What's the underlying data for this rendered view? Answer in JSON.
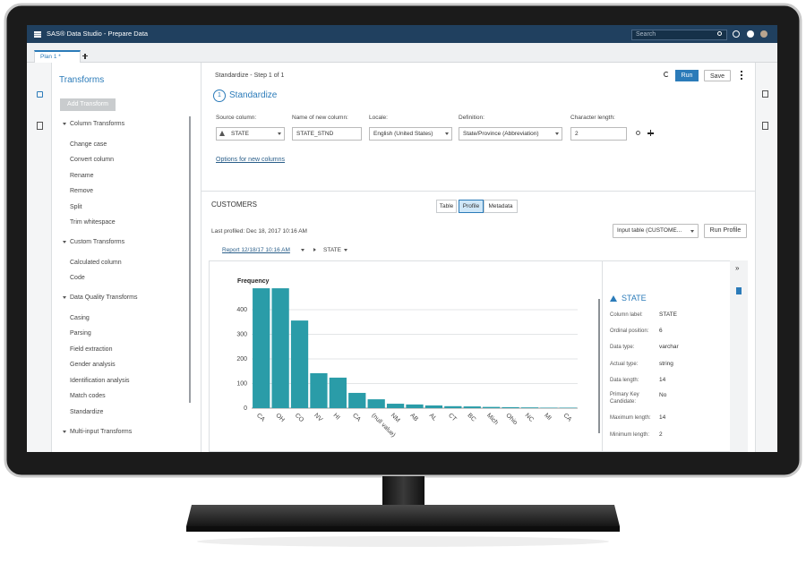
{
  "app_bar": {
    "title": "SAS® Data Studio - Prepare Data",
    "search": "Search"
  },
  "tabs": [
    "Plan 1 *"
  ],
  "transforms": {
    "title": "Transforms",
    "add_button": "Add Transform",
    "groups": [
      {
        "name": "Column Transforms",
        "items": [
          "Change case",
          "Convert column",
          "Rename",
          "Remove",
          "Split",
          "Trim whitespace"
        ]
      },
      {
        "name": "Custom Transforms",
        "items": [
          "Calculated column",
          "Code"
        ]
      },
      {
        "name": "Data Quality Transforms",
        "items": [
          "Casing",
          "Parsing",
          "Field extraction",
          "Gender analysis",
          "Identification analysis",
          "Match codes",
          "Standardize"
        ]
      },
      {
        "name": "Multi-input Transforms",
        "items": []
      }
    ]
  },
  "step": {
    "header": "Standardize - Step 1 of 1",
    "number": "1",
    "title": "Standardize",
    "run": "Run",
    "save": "Save",
    "fields": [
      {
        "label": "Source column:",
        "value": "STATE"
      },
      {
        "label": "Name of new column:",
        "value": "STATE_STND"
      },
      {
        "label": "Locale:",
        "value": "English (United States)"
      },
      {
        "label": "Definition:",
        "value": "State/Province (Abbreviation)"
      },
      {
        "label": "Character length:",
        "value": "2"
      }
    ],
    "options_link": "Options for new columns"
  },
  "profile": {
    "table_name": "CUSTOMERS",
    "view_tabs": [
      "Table",
      "Profile",
      "Metadata"
    ],
    "last_profiled": "Last profiled:  Dec 18, 2017 10:16 AM",
    "input_table": "Input table (CUSTOME...",
    "run_profile": "Run Profile",
    "report": "Report 12/18/17 10:16 AM",
    "column": "STATE"
  },
  "chart_data": {
    "type": "bar",
    "title": "Frequency",
    "categories": [
      "CA",
      "OH",
      "CO",
      "NV",
      "HI",
      "CA",
      "(null value)",
      "NM",
      "AB",
      "AL",
      "CT",
      "BC",
      "Mich",
      "Ohio",
      "NC",
      "MI",
      "CA"
    ],
    "values": [
      487,
      487,
      356,
      142,
      124,
      62,
      36,
      18,
      15,
      11,
      8,
      7,
      5,
      4,
      3,
      2,
      2
    ],
    "color": "#2a9ca8",
    "ylim": [
      0,
      500
    ],
    "yticks": [
      0,
      100,
      200,
      300,
      400
    ],
    "grid": true
  },
  "details": {
    "title": "STATE",
    "rows": [
      [
        "Column label:",
        "STATE"
      ],
      [
        "Ordinal position:",
        "6"
      ],
      [
        "Data type:",
        "varchar"
      ],
      [
        "Actual type:",
        "string"
      ],
      [
        "Data length:",
        "14"
      ],
      [
        "Primary Key Candidate:",
        "No"
      ],
      [
        "Maximum length:",
        "14"
      ],
      [
        "Minimum length:",
        "2"
      ]
    ]
  }
}
